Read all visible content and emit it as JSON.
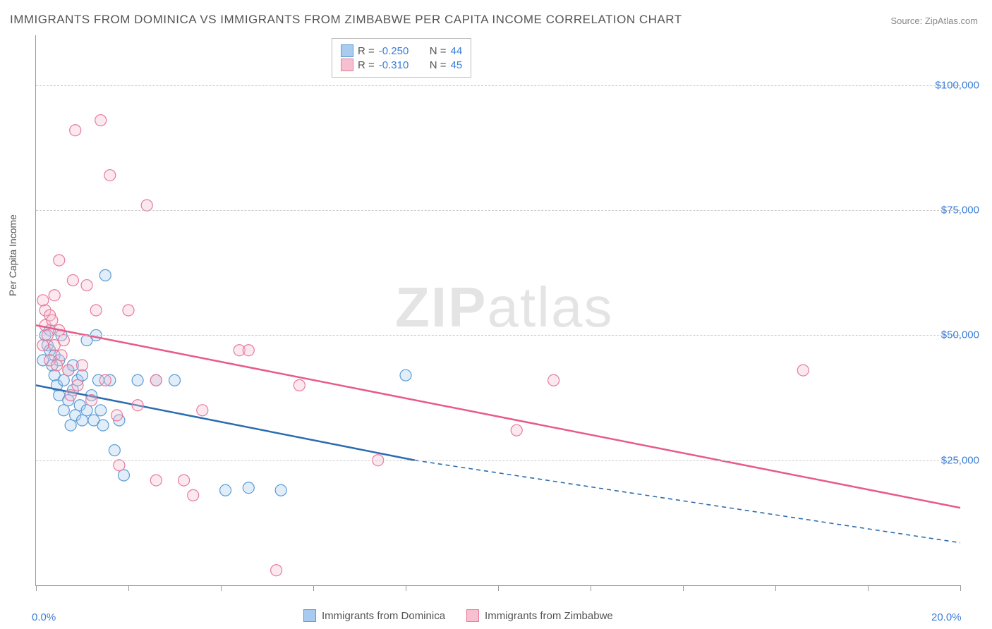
{
  "title": "IMMIGRANTS FROM DOMINICA VS IMMIGRANTS FROM ZIMBABWE PER CAPITA INCOME CORRELATION CHART",
  "source": "Source: ZipAtlas.com",
  "ylabel": "Per Capita Income",
  "watermark": {
    "bold": "ZIP",
    "light": "atlas"
  },
  "chart": {
    "type": "scatter",
    "xlim": [
      0,
      20
    ],
    "ylim": [
      0,
      110000
    ],
    "x_ticks": [
      0,
      2,
      4,
      6,
      8,
      10,
      12,
      14,
      16,
      18,
      20
    ],
    "x_tick_labels_shown": {
      "0": "0.0%",
      "20": "20.0%"
    },
    "y_gridlines": [
      25000,
      50000,
      75000,
      100000
    ],
    "y_tick_labels": {
      "25000": "$25,000",
      "50000": "$50,000",
      "75000": "$75,000",
      "100000": "$100,000"
    },
    "background_color": "#ffffff",
    "grid_color": "#cccccc",
    "axis_color": "#999999",
    "marker_radius": 8,
    "marker_stroke_width": 1.2,
    "marker_fill_opacity": 0.35,
    "series": [
      {
        "id": "dominica",
        "label": "Immigrants from Dominica",
        "color_stroke": "#5a9bd5",
        "color_fill": "#a8cbef",
        "trend_color": "#2b6cb0",
        "r": "-0.250",
        "n": "44",
        "trend": {
          "x0": 0,
          "y0": 40000,
          "x1": 8.2,
          "y1": 25000,
          "x_extend": 20,
          "y_extend": 8500
        },
        "points": [
          [
            0.2,
            50000
          ],
          [
            0.25,
            48000
          ],
          [
            0.3,
            47000
          ],
          [
            0.3,
            51000
          ],
          [
            0.35,
            44000
          ],
          [
            0.4,
            42000
          ],
          [
            0.4,
            46000
          ],
          [
            0.45,
            40000
          ],
          [
            0.5,
            38000
          ],
          [
            0.5,
            45000
          ],
          [
            0.55,
            50000
          ],
          [
            0.6,
            41000
          ],
          [
            0.6,
            35000
          ],
          [
            0.7,
            43000
          ],
          [
            0.7,
            37000
          ],
          [
            0.75,
            32000
          ],
          [
            0.8,
            39000
          ],
          [
            0.8,
            44000
          ],
          [
            0.85,
            34000
          ],
          [
            0.9,
            41000
          ],
          [
            0.95,
            36000
          ],
          [
            1.0,
            42000
          ],
          [
            1.0,
            33000
          ],
          [
            1.1,
            49000
          ],
          [
            1.1,
            35000
          ],
          [
            1.2,
            38000
          ],
          [
            1.25,
            33000
          ],
          [
            1.3,
            50000
          ],
          [
            1.35,
            41000
          ],
          [
            1.4,
            35000
          ],
          [
            1.45,
            32000
          ],
          [
            1.5,
            62000
          ],
          [
            1.6,
            41000
          ],
          [
            1.7,
            27000
          ],
          [
            1.8,
            33000
          ],
          [
            1.9,
            22000
          ],
          [
            2.2,
            41000
          ],
          [
            2.6,
            41000
          ],
          [
            3.0,
            41000
          ],
          [
            4.1,
            19000
          ],
          [
            4.6,
            19500
          ],
          [
            5.3,
            19000
          ],
          [
            8.0,
            42000
          ],
          [
            0.15,
            45000
          ]
        ]
      },
      {
        "id": "zimbabwe",
        "label": "Immigrants from Zimbabwe",
        "color_stroke": "#e77a9b",
        "color_fill": "#f6c0d1",
        "trend_color": "#e85a88",
        "r": "-0.310",
        "n": "45",
        "trend": {
          "x0": 0,
          "y0": 52000,
          "x1": 20,
          "y1": 15500,
          "x_extend": 20,
          "y_extend": 15500
        },
        "points": [
          [
            0.2,
            52000
          ],
          [
            0.2,
            55000
          ],
          [
            0.25,
            50000
          ],
          [
            0.3,
            54000
          ],
          [
            0.3,
            45000
          ],
          [
            0.35,
            53000
          ],
          [
            0.4,
            48000
          ],
          [
            0.4,
            58000
          ],
          [
            0.45,
            44000
          ],
          [
            0.5,
            51000
          ],
          [
            0.5,
            65000
          ],
          [
            0.55,
            46000
          ],
          [
            0.6,
            49000
          ],
          [
            0.7,
            43000
          ],
          [
            0.75,
            38000
          ],
          [
            0.8,
            61000
          ],
          [
            0.85,
            91000
          ],
          [
            0.9,
            40000
          ],
          [
            1.0,
            44000
          ],
          [
            1.1,
            60000
          ],
          [
            1.2,
            37000
          ],
          [
            1.3,
            55000
          ],
          [
            1.4,
            93000
          ],
          [
            1.5,
            41000
          ],
          [
            1.6,
            82000
          ],
          [
            1.75,
            34000
          ],
          [
            1.8,
            24000
          ],
          [
            2.0,
            55000
          ],
          [
            2.2,
            36000
          ],
          [
            2.4,
            76000
          ],
          [
            2.6,
            41000
          ],
          [
            2.6,
            21000
          ],
          [
            3.2,
            21000
          ],
          [
            3.4,
            18000
          ],
          [
            3.6,
            35000
          ],
          [
            4.4,
            47000
          ],
          [
            4.6,
            47000
          ],
          [
            5.2,
            3000
          ],
          [
            5.7,
            40000
          ],
          [
            7.4,
            25000
          ],
          [
            10.4,
            31000
          ],
          [
            11.2,
            41000
          ],
          [
            16.6,
            43000
          ],
          [
            0.15,
            48000
          ],
          [
            0.15,
            57000
          ]
        ]
      }
    ]
  },
  "legend_top_labels": {
    "R": "R =",
    "N": "N ="
  },
  "colors": {
    "tick_label": "#3b7dd8",
    "text": "#555555",
    "legend_value": "#3b7dd8"
  }
}
